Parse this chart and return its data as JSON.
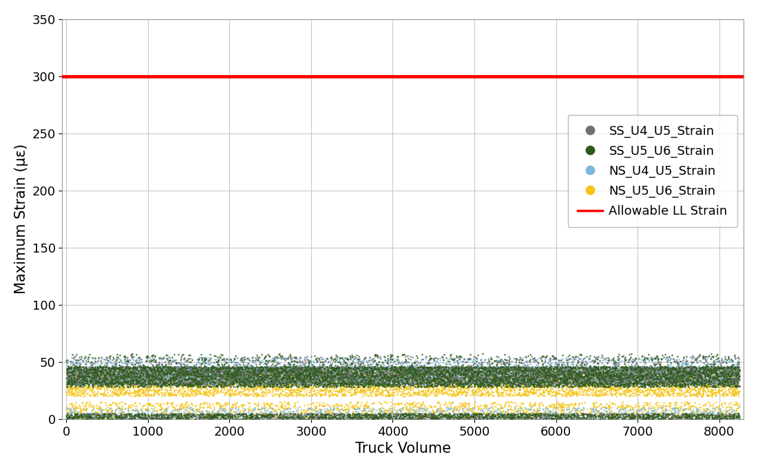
{
  "title": "",
  "xlabel": "Truck Volume",
  "ylabel": "Maximum Strain (με)",
  "xlim": [
    -50,
    8300
  ],
  "ylim": [
    0,
    350
  ],
  "yticks": [
    0,
    50,
    100,
    150,
    200,
    250,
    300,
    350
  ],
  "xticks": [
    0,
    1000,
    2000,
    3000,
    4000,
    5000,
    6000,
    7000,
    8000
  ],
  "allowable_strain": 300,
  "allowable_color": "#ff0000",
  "allowable_linewidth": 3.5,
  "series": [
    {
      "label": "SS_U4_U5_Strain",
      "color": "#707070",
      "alpha": 0.9,
      "markersize": 3,
      "zorder": 4
    },
    {
      "label": "SS_U5_U6_Strain",
      "color": "#2d5a1b",
      "alpha": 0.9,
      "markersize": 3,
      "zorder": 5
    },
    {
      "label": "NS_U4_U5_Strain",
      "color": "#7ab8d9",
      "alpha": 0.85,
      "markersize": 3,
      "zorder": 3
    },
    {
      "label": "NS_U5_U6_Strain",
      "color": "#f5c518",
      "alpha": 0.95,
      "markersize": 3,
      "zorder": 2
    }
  ],
  "legend_fontsize": 13,
  "axis_fontsize": 15,
  "tick_fontsize": 13,
  "figure_facecolor": "#ffffff",
  "grid_color": "#c8c8c8",
  "grid_linewidth": 0.8,
  "n_points": 8250,
  "seed": 42
}
